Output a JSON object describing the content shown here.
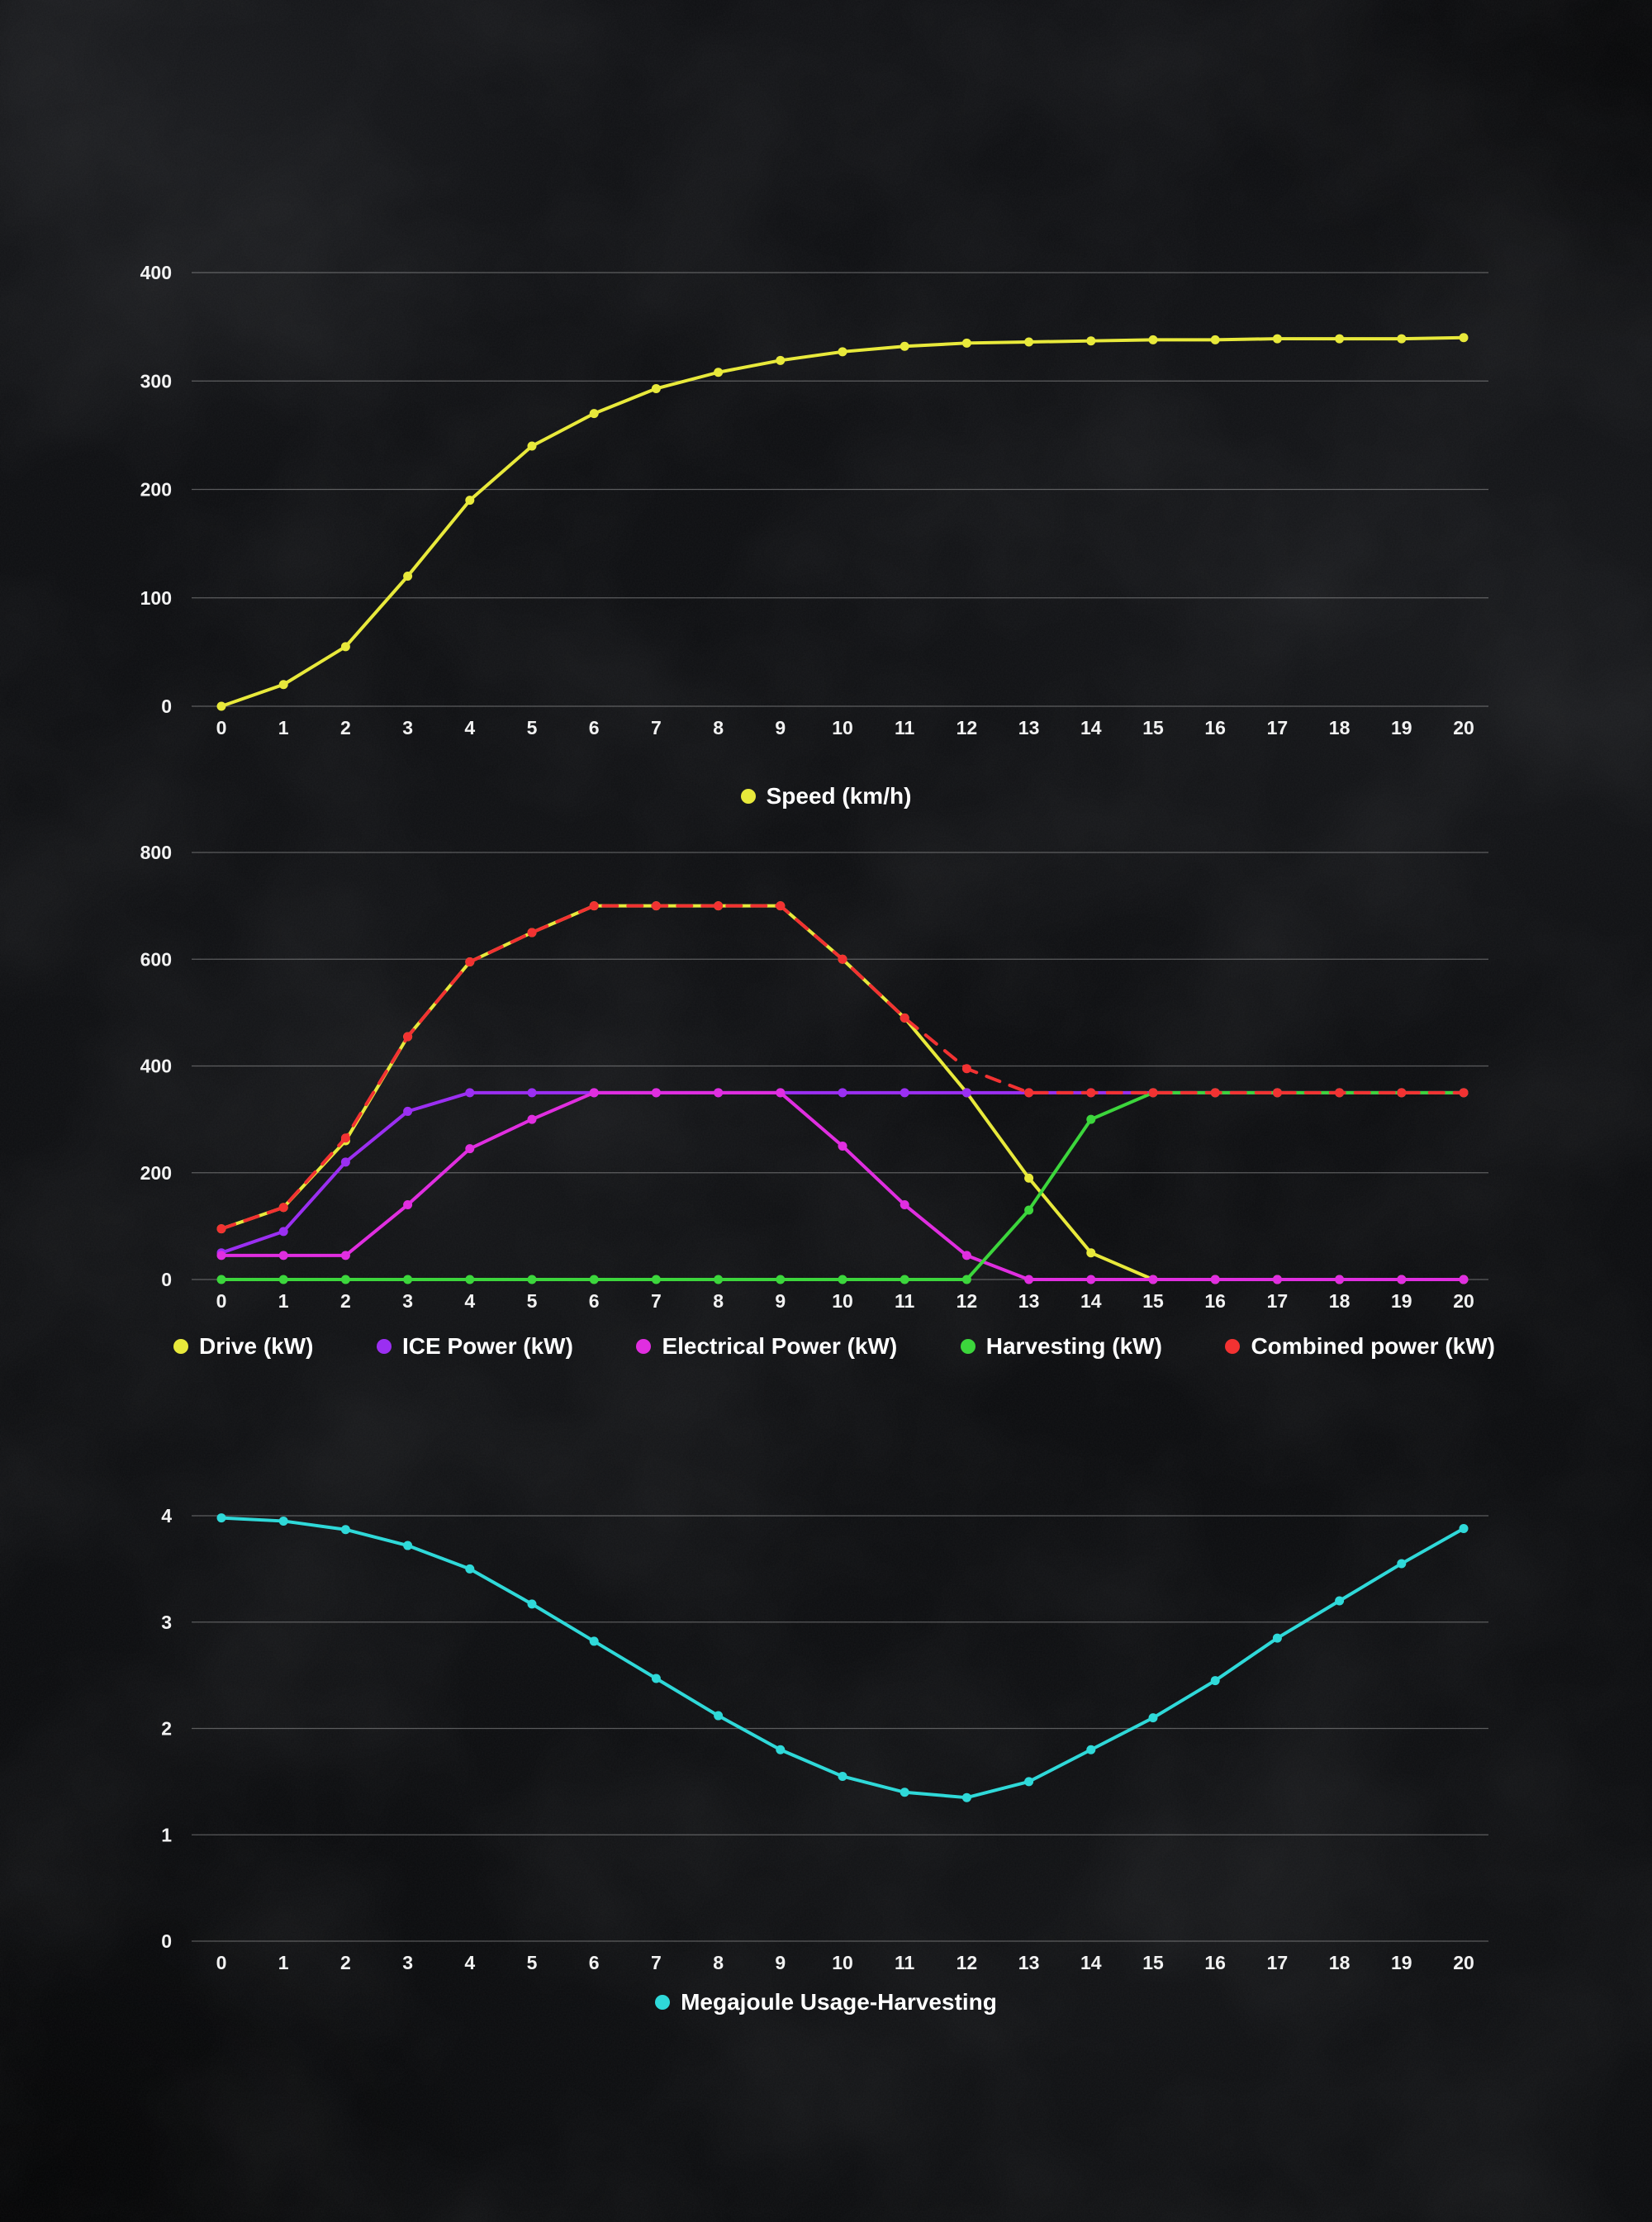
{
  "chart_data": [
    {
      "name": "speed-chart",
      "type": "line",
      "x": [
        0,
        1,
        2,
        3,
        4,
        5,
        6,
        7,
        8,
        9,
        10,
        11,
        12,
        13,
        14,
        15,
        16,
        17,
        18,
        19,
        20
      ],
      "ylim": [
        0,
        400
      ],
      "yticks": [
        0,
        100,
        200,
        300,
        400
      ],
      "grid": true,
      "legend_position": "bottom-center",
      "series": [
        {
          "name": "Speed (km/h)",
          "color": "#e8e93b",
          "dashed": false,
          "values": [
            0,
            20,
            55,
            120,
            190,
            240,
            270,
            293,
            308,
            319,
            327,
            332,
            335,
            336,
            337,
            338,
            338,
            339,
            339,
            339,
            340
          ]
        }
      ],
      "legend": [
        {
          "label": "Speed (km/h)",
          "color": "#e8e93b"
        }
      ]
    },
    {
      "name": "power-chart",
      "type": "line",
      "x": [
        0,
        1,
        2,
        3,
        4,
        5,
        6,
        7,
        8,
        9,
        10,
        11,
        12,
        13,
        14,
        15,
        16,
        17,
        18,
        19,
        20
      ],
      "ylim": [
        0,
        800
      ],
      "yticks": [
        0,
        200,
        400,
        600,
        800
      ],
      "grid": true,
      "legend_position": "bottom-row",
      "series": [
        {
          "name": "Drive (kW)",
          "color": "#e8e93b",
          "dashed": false,
          "values": [
            95,
            135,
            260,
            455,
            595,
            650,
            700,
            700,
            700,
            700,
            600,
            490,
            350,
            190,
            50,
            0,
            0,
            0,
            0,
            0,
            0
          ]
        },
        {
          "name": "ICE Power (kW)",
          "color": "#9b2ff2",
          "dashed": false,
          "values": [
            50,
            90,
            220,
            315,
            350,
            350,
            350,
            350,
            350,
            350,
            350,
            350,
            350,
            350,
            350,
            350,
            350,
            350,
            350,
            350,
            350
          ]
        },
        {
          "name": "Electrical Power (kW)",
          "color": "#e02ee0",
          "dashed": false,
          "values": [
            45,
            45,
            45,
            140,
            245,
            300,
            350,
            350,
            350,
            350,
            250,
            140,
            45,
            0,
            0,
            0,
            0,
            0,
            0,
            0,
            0
          ]
        },
        {
          "name": "Harvesting (kW)",
          "color": "#3cd63c",
          "dashed": false,
          "values": [
            0,
            0,
            0,
            0,
            0,
            0,
            0,
            0,
            0,
            0,
            0,
            0,
            0,
            130,
            300,
            350,
            350,
            350,
            350,
            350,
            350
          ]
        },
        {
          "name": "Combined power (kW)",
          "color": "#f23232",
          "dashed": true,
          "values": [
            95,
            135,
            265,
            455,
            595,
            650,
            700,
            700,
            700,
            700,
            600,
            490,
            395,
            350,
            350,
            350,
            350,
            350,
            350,
            350,
            350
          ]
        }
      ],
      "legend": [
        {
          "label": "Drive (kW)",
          "color": "#e8e93b"
        },
        {
          "label": "ICE Power (kW)",
          "color": "#9b2ff2"
        },
        {
          "label": "Electrical Power (kW)",
          "color": "#e02ee0"
        },
        {
          "label": "Harvesting (kW)",
          "color": "#3cd63c"
        },
        {
          "label": "Combined power (kW)",
          "color": "#f23232"
        }
      ]
    },
    {
      "name": "energy-chart",
      "type": "line",
      "x": [
        0,
        1,
        2,
        3,
        4,
        5,
        6,
        7,
        8,
        9,
        10,
        11,
        12,
        13,
        14,
        15,
        16,
        17,
        18,
        19,
        20
      ],
      "ylim": [
        0,
        4
      ],
      "yticks": [
        0,
        1,
        2,
        3,
        4
      ],
      "grid": true,
      "legend_position": "bottom-center",
      "series": [
        {
          "name": "Megajoule Usage-Harvesting",
          "color": "#2fd9d9",
          "dashed": false,
          "values": [
            3.98,
            3.95,
            3.87,
            3.72,
            3.5,
            3.17,
            2.82,
            2.47,
            2.12,
            1.8,
            1.55,
            1.4,
            1.35,
            1.5,
            1.8,
            2.1,
            2.45,
            2.85,
            3.2,
            3.55,
            3.88
          ]
        }
      ],
      "legend": [
        {
          "label": "Megajoule Usage-Harvesting",
          "color": "#2fd9d9"
        }
      ]
    }
  ],
  "style": {
    "background_color": "#0d0e10",
    "gridline_color": "rgba(255,255,255,0.30)",
    "tick_label_color": "#f2f2f2",
    "legend_text_color": "#ffffff"
  }
}
